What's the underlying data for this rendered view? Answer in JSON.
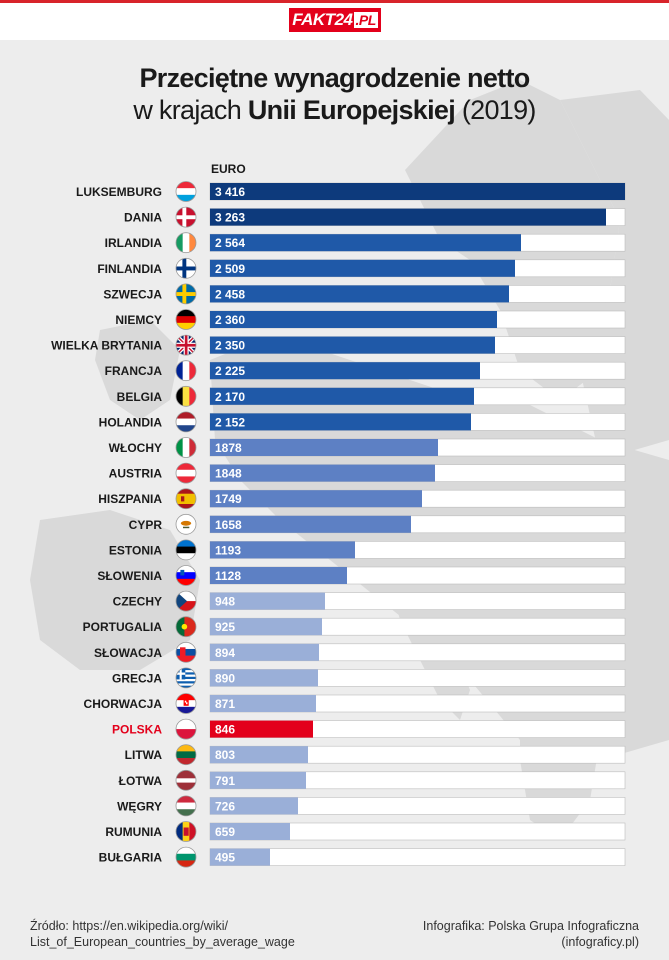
{
  "header": {
    "logo_main": "FAKT24",
    "logo_suffix": ".PL"
  },
  "title": {
    "line1": "Przeciętne wynagrodzenie netto",
    "line2_prefix": "w krajach ",
    "line2_bold": "Unii Europejskiej",
    "line2_suffix": " (2019)"
  },
  "colors": {
    "tier1": "#0d3a7c",
    "tier2": "#1f59a8",
    "tier3": "#5d80c4",
    "tier4": "#9aafd8",
    "highlight": "#e3001b",
    "track": "#ffffff"
  },
  "chart_data": {
    "type": "bar",
    "orientation": "horizontal",
    "unit_label": "EURO",
    "xlim": [
      0,
      3416
    ],
    "categories": [
      "LUKSEMBURG",
      "DANIA",
      "IRLANDIA",
      "FINLANDIA",
      "SZWECJA",
      "NIEMCY",
      "WIELKA BRYTANIA",
      "FRANCJA",
      "BELGIA",
      "HOLANDIA",
      "WŁOCHY",
      "AUSTRIA",
      "HISZPANIA",
      "CYPR",
      "ESTONIA",
      "SŁOWENIA",
      "CZECHY",
      "PORTUGALIA",
      "SŁOWACJA",
      "GRECJA",
      "CHORWACJA",
      "POLSKA",
      "LITWA",
      "ŁOTWA",
      "WĘGRY",
      "RUMUNIA",
      "BUŁGARIA"
    ],
    "values": [
      3416,
      3263,
      2564,
      2509,
      2458,
      2360,
      2350,
      2225,
      2170,
      2152,
      1878,
      1848,
      1749,
      1658,
      1193,
      1128,
      948,
      925,
      894,
      890,
      871,
      846,
      803,
      791,
      726,
      659,
      495
    ],
    "value_labels": [
      "3 416",
      "3 263",
      "2 564",
      "2 509",
      "2 458",
      "2 360",
      "2 350",
      "2 225",
      "2 170",
      "2 152",
      "1878",
      "1848",
      "1749",
      "1658",
      "1193",
      "1128",
      "948",
      "925",
      "894",
      "890",
      "871",
      "846",
      "803",
      "791",
      "726",
      "659",
      "495"
    ],
    "highlighted": "POLSKA",
    "flags": [
      "luxembourg-flag-icon",
      "denmark-flag-icon",
      "ireland-flag-icon",
      "finland-flag-icon",
      "sweden-flag-icon",
      "germany-flag-icon",
      "united-kingdom-flag-icon",
      "france-flag-icon",
      "belgium-flag-icon",
      "netherlands-flag-icon",
      "italy-flag-icon",
      "austria-flag-icon",
      "spain-flag-icon",
      "cyprus-flag-icon",
      "estonia-flag-icon",
      "slovenia-flag-icon",
      "czechia-flag-icon",
      "portugal-flag-icon",
      "slovakia-flag-icon",
      "greece-flag-icon",
      "croatia-flag-icon",
      "poland-flag-icon",
      "lithuania-flag-icon",
      "latvia-flag-icon",
      "hungary-flag-icon",
      "romania-flag-icon",
      "bulgaria-flag-icon"
    ],
    "grid": false,
    "legend": "none"
  },
  "footer": {
    "source_line1": "Źródło: https://en.wikipedia.org/wiki/",
    "source_line2": "List_of_European_countries_by_average_wage",
    "credit_line1": "Infografika: Polska Grupa Infograficzna",
    "credit_line2": "(infograficy.pl)"
  }
}
